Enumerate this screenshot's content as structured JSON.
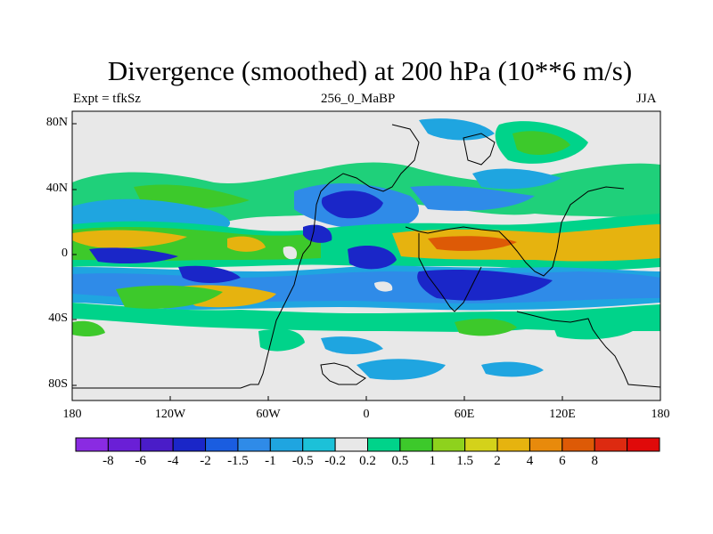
{
  "header": {
    "title": "Divergence (smoothed) at 200 hPa (10**6 m/s)",
    "expt": "Expt = tfkSz",
    "center_label": "256_0_MaBP",
    "season": "JJA"
  },
  "axes": {
    "lat_labels": [
      "80N",
      "40N",
      "0",
      "40S",
      "80S"
    ],
    "lon_labels": [
      "180",
      "120W",
      "60W",
      "0",
      "60E",
      "120E",
      "180"
    ]
  },
  "colorbar": {
    "colors": [
      "#8a2be2",
      "#6a1fd6",
      "#4a1cc8",
      "#1a26c8",
      "#1a5de0",
      "#2f8be8",
      "#1fa5e0",
      "#1cc1d8",
      "#e8e8e8",
      "#00d38a",
      "#3dc92b",
      "#8ed21d",
      "#d4d21a",
      "#e6b30f",
      "#e88a0c",
      "#dd5a06",
      "#dd2a10",
      "#e00a0a"
    ],
    "labels": [
      "-8",
      "-6",
      "-4",
      "-2",
      "-1.5",
      "-1",
      "-0.5",
      "-0.2",
      "0.2",
      "0.5",
      "1",
      "1.5",
      "2",
      "4",
      "6",
      "8"
    ]
  }
}
